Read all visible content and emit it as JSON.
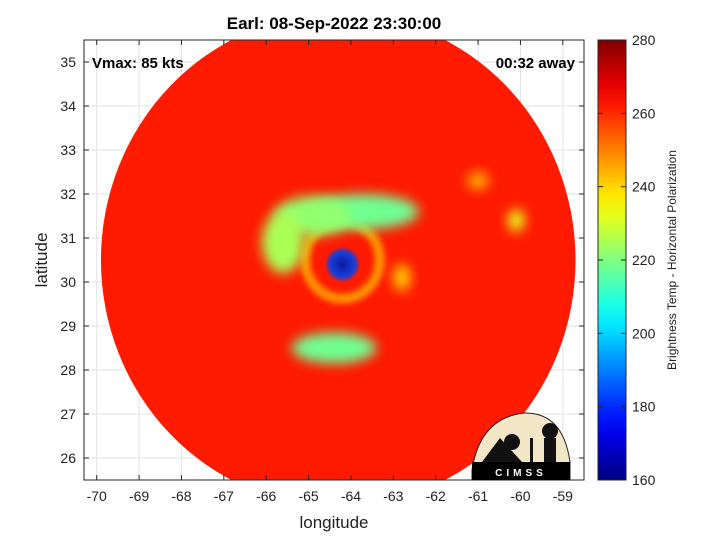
{
  "chart_data": {
    "type": "heatmap",
    "title": "Earl: 08-Sep-2022 23:30:00",
    "xlabel": "longitude",
    "ylabel": "latitude",
    "xlim": [
      -70.3,
      -58.5
    ],
    "ylim": [
      25.5,
      35.5
    ],
    "x_ticks": [
      -70,
      -69,
      -68,
      -67,
      -66,
      -65,
      -64,
      -63,
      -62,
      -61,
      -60,
      -59
    ],
    "y_ticks": [
      26,
      27,
      28,
      29,
      30,
      31,
      32,
      33,
      34,
      35
    ],
    "grid": true,
    "annotations": {
      "vmax": "Vmax: 85 kts",
      "time_offset": "00:32 away"
    },
    "colorbar": {
      "label": "Brightness Temp - Horizontal Polarization",
      "range": [
        160,
        280
      ],
      "ticks": [
        160,
        180,
        200,
        220,
        240,
        260,
        280
      ],
      "colormap": "jet"
    },
    "storm_center": {
      "lon": -64.2,
      "lat": 30.4
    },
    "swath": {
      "center_lon": -64.3,
      "center_lat": 30.5,
      "radius_deg": 5.6
    },
    "background_value": 262,
    "features": [
      {
        "kind": "ring",
        "lon": -64.2,
        "lat": 30.5,
        "r": 0.55,
        "value": 248
      },
      {
        "kind": "blob",
        "lon": -63.7,
        "lat": 31.6,
        "rx": 1.3,
        "ry": 0.4,
        "value": 218
      },
      {
        "kind": "blob",
        "lon": -64.9,
        "lat": 31.5,
        "rx": 0.9,
        "ry": 0.45,
        "value": 222
      },
      {
        "kind": "blob",
        "lon": -65.6,
        "lat": 30.9,
        "rx": 0.5,
        "ry": 0.7,
        "value": 225
      },
      {
        "kind": "blob",
        "lon": -64.4,
        "lat": 28.5,
        "rx": 1.0,
        "ry": 0.35,
        "value": 218
      },
      {
        "kind": "blob",
        "lon": -60.1,
        "lat": 31.4,
        "rx": 0.2,
        "ry": 0.25,
        "value": 232
      },
      {
        "kind": "blob",
        "lon": -62.8,
        "lat": 30.1,
        "rx": 0.2,
        "ry": 0.3,
        "value": 240
      },
      {
        "kind": "blob",
        "lon": -61.0,
        "lat": 32.3,
        "rx": 0.25,
        "ry": 0.2,
        "value": 244
      }
    ]
  },
  "logo": {
    "text": "CIMSS"
  }
}
